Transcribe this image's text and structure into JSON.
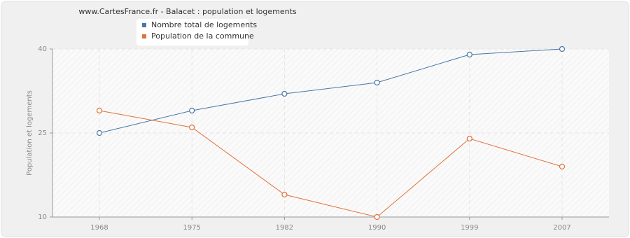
{
  "chart_data": {
    "type": "line",
    "title": "www.CartesFrance.fr - Balacet : population et logements",
    "y_label": "Population et logements",
    "categories": [
      "1968",
      "1975",
      "1982",
      "1990",
      "1999",
      "2007"
    ],
    "series": [
      {
        "name": "Nombre total de logements",
        "color": "#4a76a8",
        "values": [
          25,
          29,
          32,
          34,
          39,
          40
        ]
      },
      {
        "name": "Population de la commune",
        "color": "#e0703a",
        "values": [
          29,
          26,
          14,
          10,
          24,
          19
        ]
      }
    ],
    "ylim": [
      10,
      40
    ],
    "yticks": [
      10,
      25,
      40
    ],
    "grid": true
  }
}
